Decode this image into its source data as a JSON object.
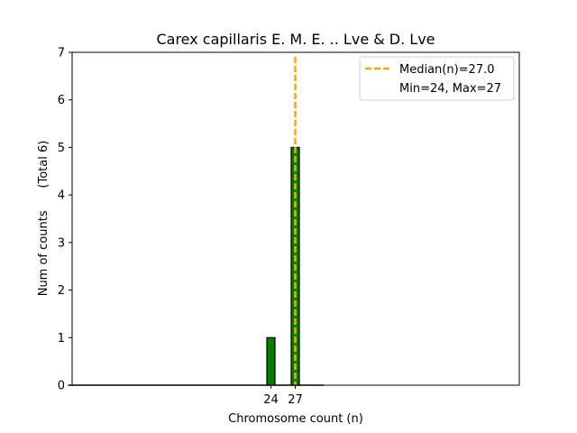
{
  "chart_data": {
    "type": "bar",
    "title": "Carex capillaris E. M. E. .. Lve & D. Lve",
    "xlabel": "Chromosome count (n)",
    "ylabel": "Num of counts      (Total 6)",
    "x": [
      24,
      27
    ],
    "xtick_labels": [
      "24",
      "27"
    ],
    "values": [
      1,
      5
    ],
    "ylim": [
      0,
      7
    ],
    "yticks": [
      0,
      1,
      2,
      3,
      4,
      5,
      6,
      7
    ],
    "ytick_labels": [
      "0",
      "1",
      "2",
      "3",
      "4",
      "5",
      "6",
      "7"
    ],
    "median": 27.0,
    "min": 24,
    "max": 27,
    "grid": false,
    "legend_position": "top-right",
    "legend": {
      "median_label": "Median(n)=27.0",
      "range_label": "Min=24, Max=27"
    },
    "colors": {
      "bar": "#008000",
      "bar_edge": "#000000",
      "median_line": "#ffa500"
    }
  }
}
